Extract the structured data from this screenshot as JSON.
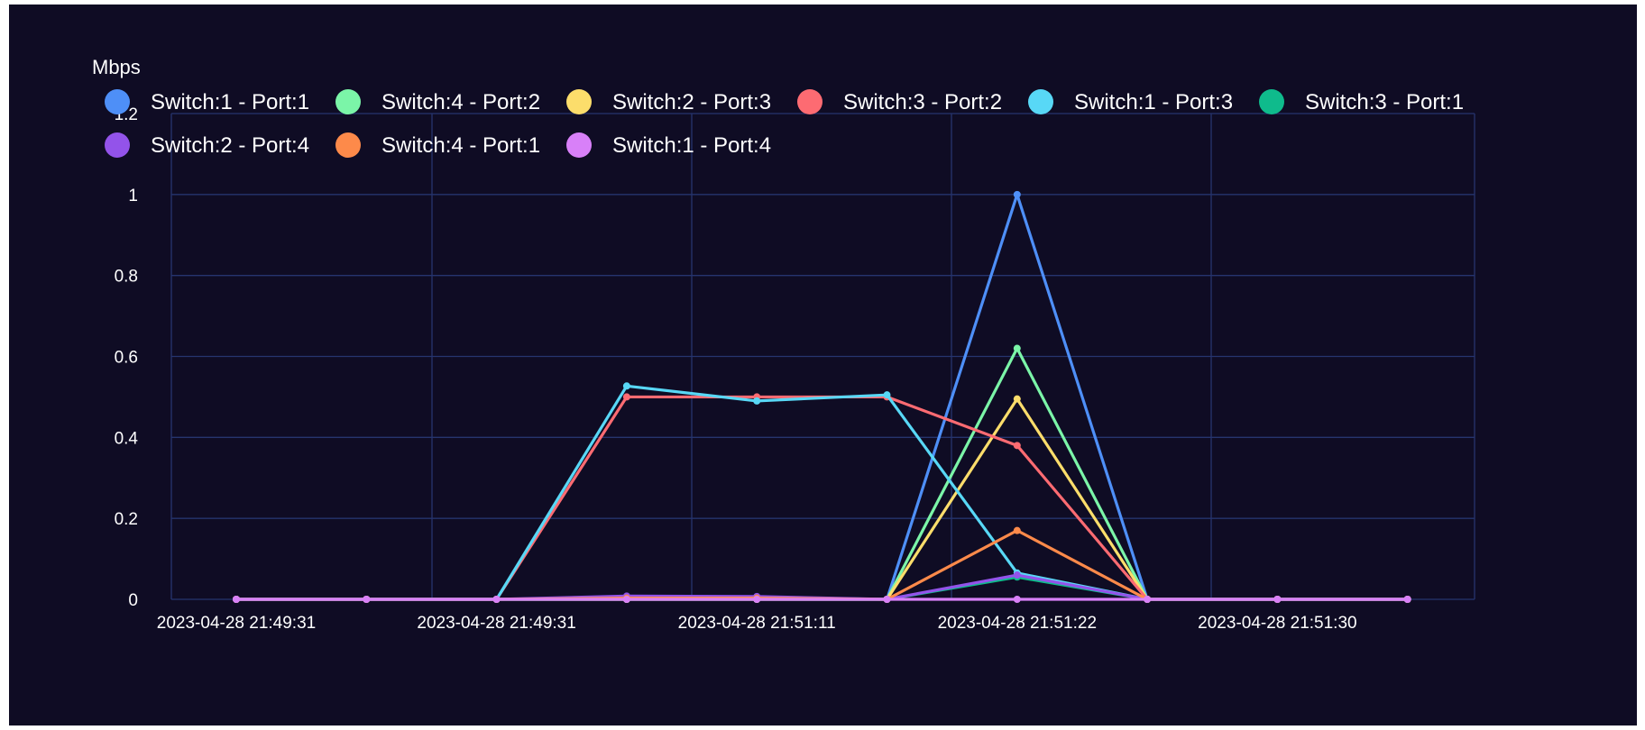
{
  "colors": {
    "background": "#0f0c24",
    "grid": "#26346e",
    "text": "#ffffff"
  },
  "chart_data": {
    "type": "line",
    "ylabel": "Mbps",
    "ylim": [
      0,
      1.2
    ],
    "yticks": [
      0,
      0.2,
      0.4,
      0.6,
      0.8,
      1,
      1.2
    ],
    "ytick_labels": [
      "0",
      "0.2",
      "0.4",
      "0.6",
      "0.8",
      "1",
      "1.2"
    ],
    "x_count": 10,
    "xtick_labels": [
      "2023-04-28 21:49:31",
      "2023-04-28 21:49:31",
      "2023-04-28 21:51:11",
      "2023-04-28 21:51:22",
      "2023-04-28 21:51:30"
    ],
    "grid": true,
    "legend_position": "top-left",
    "series": [
      {
        "name": "Switch:1 - Port:1",
        "color": "#4e8ff7",
        "values": [
          0,
          0,
          0,
          0,
          0,
          0,
          1.0,
          0,
          0,
          0
        ]
      },
      {
        "name": "Switch:4 - Port:2",
        "color": "#7bf5a8",
        "values": [
          0,
          0,
          0,
          0,
          0,
          0,
          0.62,
          0,
          0,
          0
        ]
      },
      {
        "name": "Switch:2 - Port:3",
        "color": "#fcdd6b",
        "values": [
          0,
          0,
          0,
          0,
          0,
          0,
          0.495,
          0,
          0,
          0
        ]
      },
      {
        "name": "Switch:3 - Port:2",
        "color": "#fd6b72",
        "values": [
          0,
          0,
          0,
          0.5,
          0.5,
          0.5,
          0.38,
          0,
          0,
          0
        ]
      },
      {
        "name": "Switch:1 - Port:3",
        "color": "#58d8f6",
        "values": [
          0,
          0,
          0,
          0.527,
          0.49,
          0.505,
          0.065,
          0,
          0,
          0
        ]
      },
      {
        "name": "Switch:3 - Port:1",
        "color": "#0fbb8c",
        "values": [
          0,
          0,
          0,
          0.005,
          0.005,
          0,
          0.055,
          0,
          0,
          0
        ]
      },
      {
        "name": "Switch:2 - Port:4",
        "color": "#9353ea",
        "values": [
          0,
          0,
          0,
          0.008,
          0.007,
          0,
          0.06,
          0,
          0,
          0
        ]
      },
      {
        "name": "Switch:4 - Port:1",
        "color": "#fd8a4a",
        "values": [
          0,
          0,
          0,
          0.003,
          0.003,
          0,
          0.17,
          0,
          0,
          0
        ]
      },
      {
        "name": "Switch:1 - Port:4",
        "color": "#d880f8",
        "values": [
          0,
          0,
          0,
          0,
          0,
          0,
          0,
          0,
          0,
          0
        ]
      }
    ]
  }
}
